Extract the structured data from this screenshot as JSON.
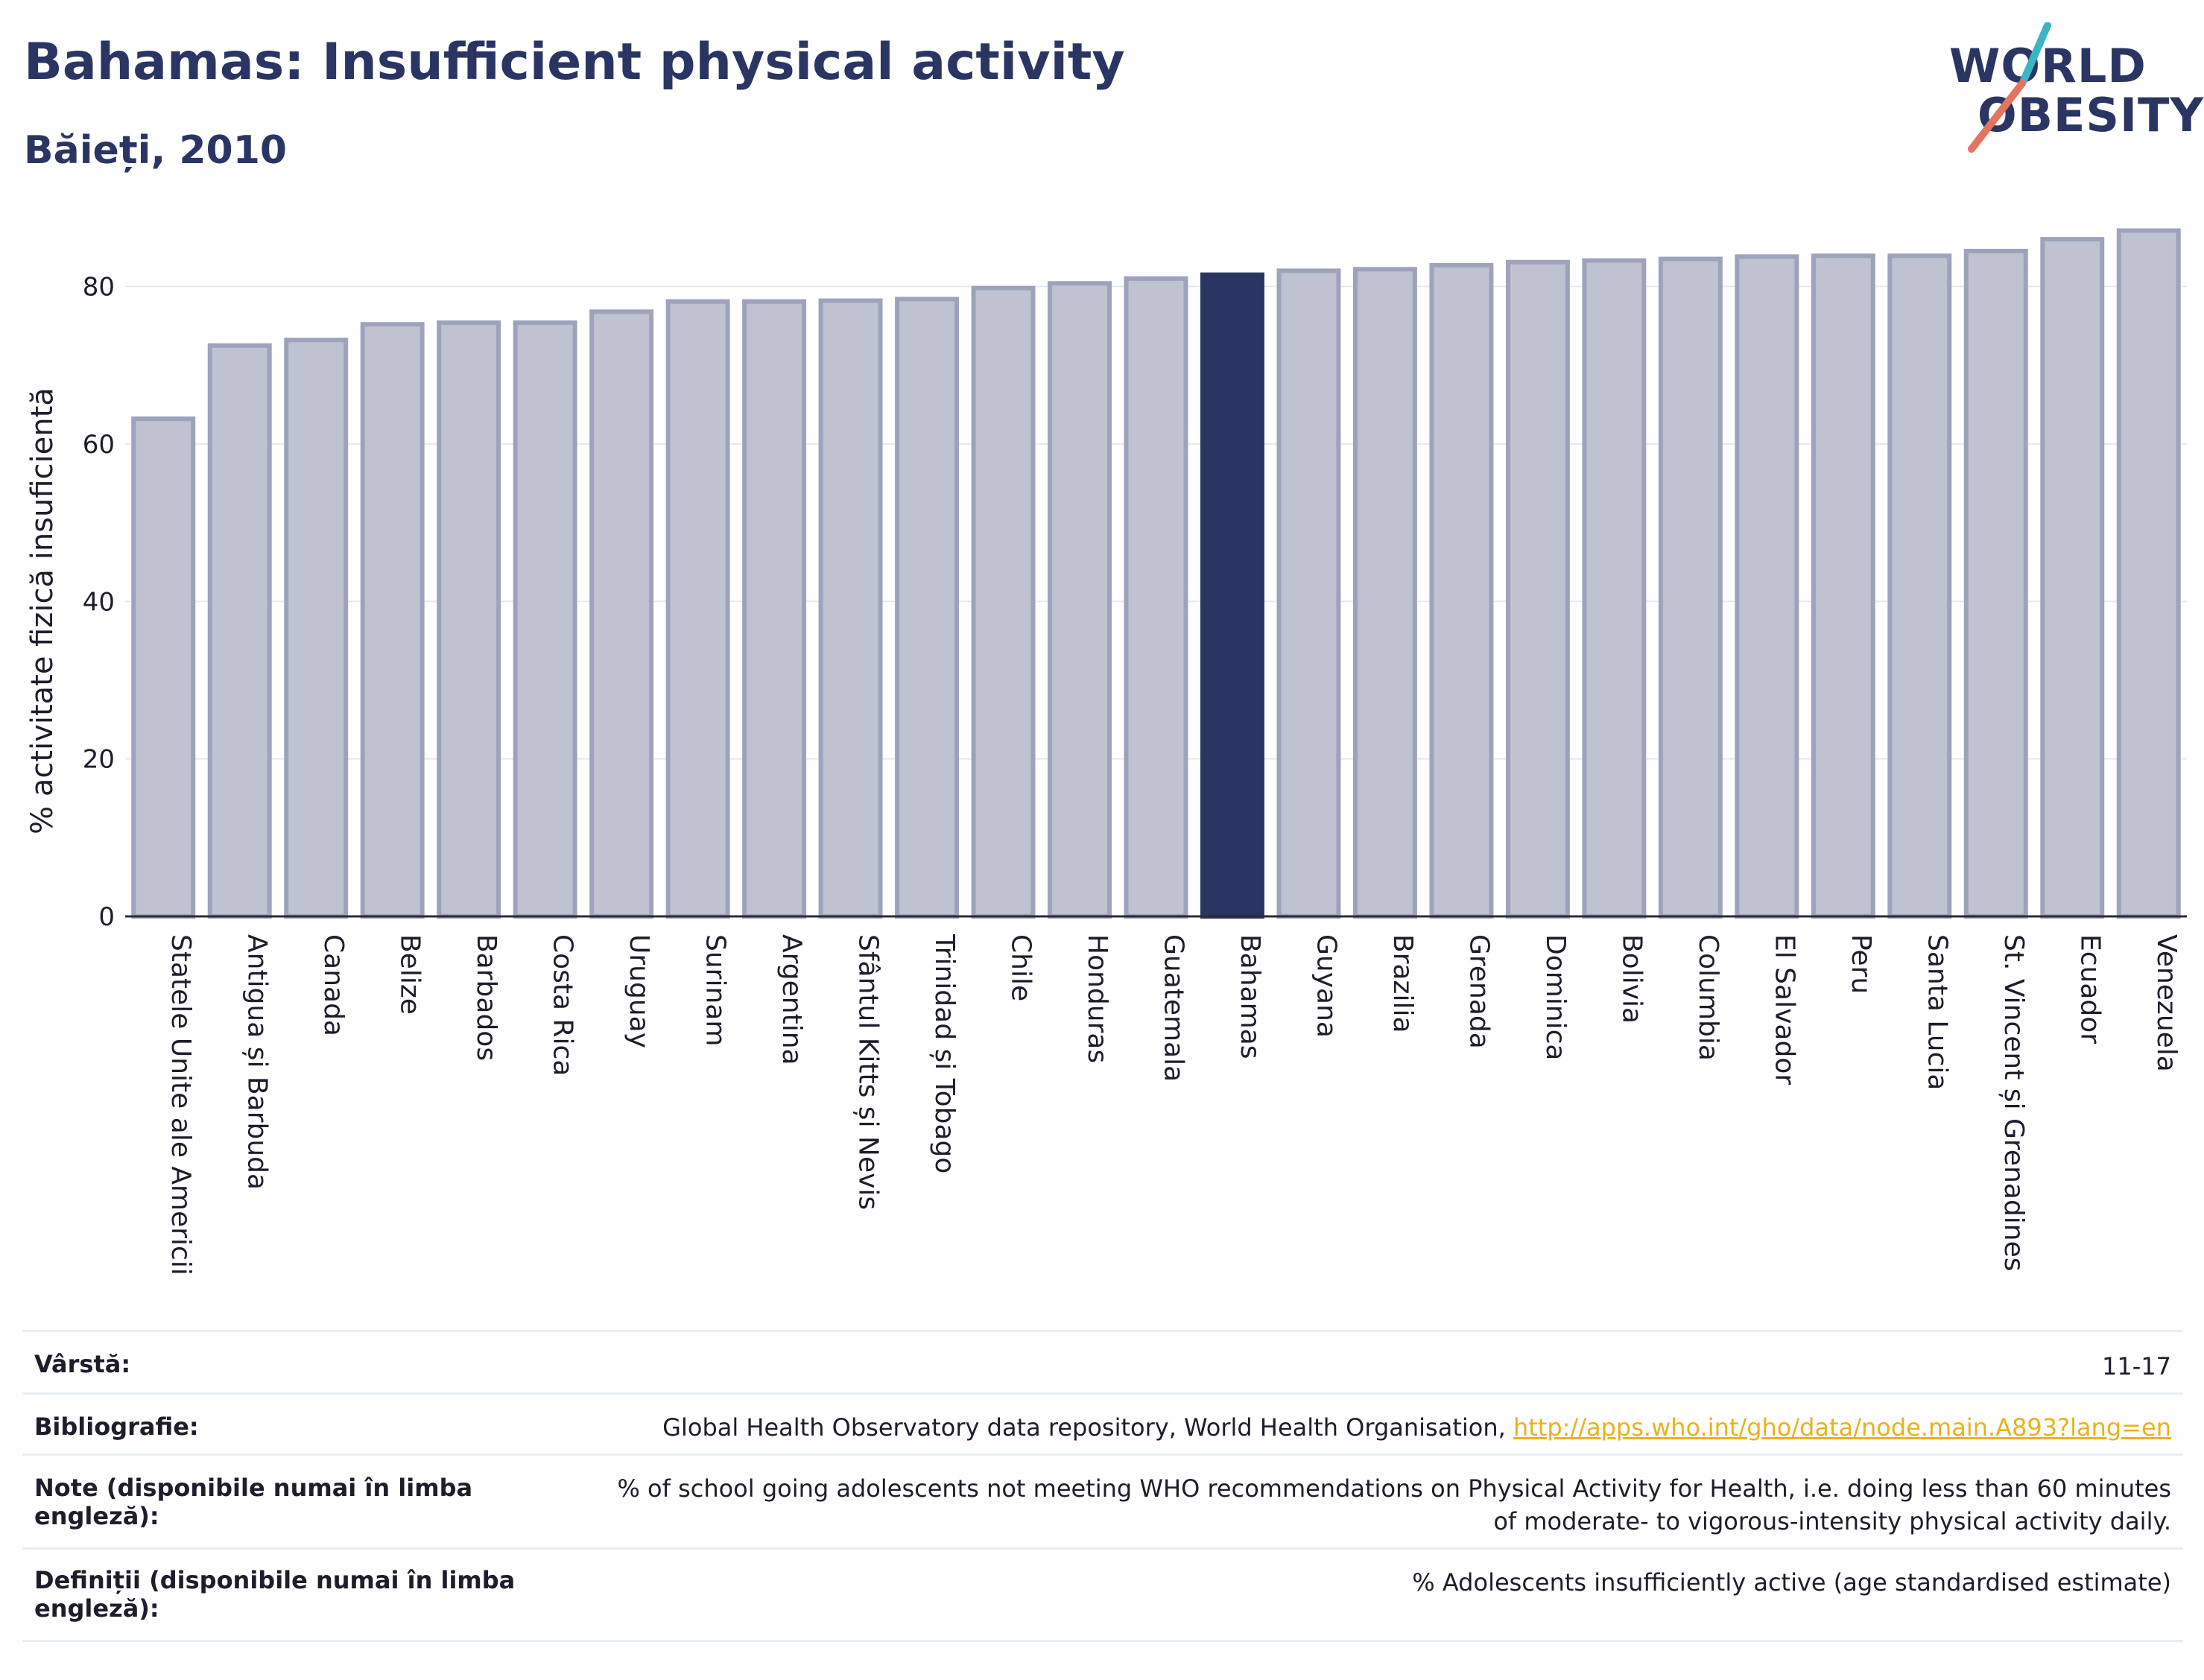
{
  "header": {
    "title": "Bahamas: Insufficient physical activity",
    "subtitle": "Băieți, 2010"
  },
  "logo": {
    "line1": "WORLD",
    "line2": "OBESITY"
  },
  "colors": {
    "highlight": "#2b3563",
    "bar": "#bfc2d1",
    "bar_edge": "#9ea3bb",
    "title": "#2b3563",
    "link": "#e8b21b"
  },
  "chart_data": {
    "type": "bar",
    "title": "Bahamas: Insufficient physical activity",
    "subtitle": "Băieți, 2010",
    "xlabel": "",
    "ylabel": "% activitate fizică insuficientă",
    "ylim": [
      0,
      88
    ],
    "yticks": [
      0,
      20,
      40,
      60,
      80
    ],
    "grid": true,
    "highlight": "Bahamas",
    "categories": [
      "Statele Unite ale Americii",
      "Antigua și Barbuda",
      "Canada",
      "Belize",
      "Barbados",
      "Costa Rica",
      "Uruguay",
      "Surinam",
      "Argentina",
      "Sfântul Kitts și Nevis",
      "Trinidad și Tobago",
      "Chile",
      "Honduras",
      "Guatemala",
      "Bahamas",
      "Guyana",
      "Brazilia",
      "Grenada",
      "Dominica",
      "Bolivia",
      "Columbia",
      "El Salvador",
      "Peru",
      "Santa Lucia",
      "St. Vincent și Grenadines",
      "Ecuador",
      "Venezuela"
    ],
    "values": [
      63.2,
      72.5,
      73.2,
      75.2,
      75.4,
      75.4,
      76.8,
      78.1,
      78.1,
      78.2,
      78.4,
      79.8,
      80.4,
      81.0,
      81.5,
      82.0,
      82.2,
      82.7,
      83.1,
      83.3,
      83.5,
      83.8,
      83.9,
      83.9,
      84.5,
      86.0,
      87.1
    ]
  },
  "meta": {
    "age_label": "Vârstă:",
    "age_value": "11-17",
    "biblio_label": "Bibliografie:",
    "biblio_text": "Global Health Observatory data repository, World Health Organisation, ",
    "biblio_link": "http://apps.who.int/gho/data/node.main.A893?lang=en",
    "notes_label": "Note (disponibile numai în limba engleză):",
    "notes_value": "% of school going adolescents not meeting WHO recommendations on Physical Activity for Health, i.e. doing less than 60 minutes of moderate- to vigorous-intensity physical activity daily.",
    "defs_label": "Definiții (disponibile numai în limba engleză):",
    "defs_value": "% Adolescents insufficiently active (age standardised estimate)"
  }
}
